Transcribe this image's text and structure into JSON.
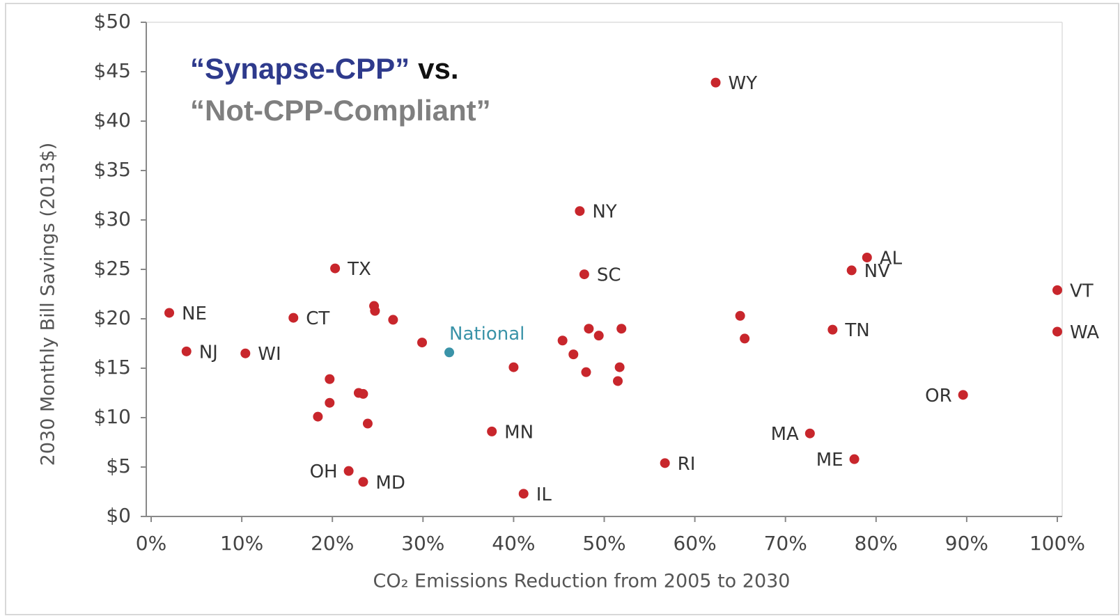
{
  "chart_data": {
    "type": "scatter",
    "annotations": [
      "“Synapse-CPP”",
      "vs.",
      "“Not-CPP-Compliant”"
    ],
    "xlabel": "CO₂ Emissions Reduction from 2005 to 2030",
    "ylabel": "2030 Monthly Bill Savings (2013$)",
    "xlim": [
      0,
      100
    ],
    "xticks": [
      {
        "value": 0,
        "label": "0%"
      },
      {
        "value": 10,
        "label": "10%"
      },
      {
        "value": 20,
        "label": "20%"
      },
      {
        "value": 30,
        "label": "30%"
      },
      {
        "value": 40,
        "label": "40%"
      },
      {
        "value": 50,
        "label": "50%"
      },
      {
        "value": 60,
        "label": "60%"
      },
      {
        "value": 70,
        "label": "70%"
      },
      {
        "value": 80,
        "label": "80%"
      },
      {
        "value": 90,
        "label": "90%"
      },
      {
        "value": 100,
        "label": "100%"
      }
    ],
    "ylim": [
      0,
      50
    ],
    "yticks": [
      {
        "value": 0,
        "label": "$0"
      },
      {
        "value": 5,
        "label": "$5"
      },
      {
        "value": 10,
        "label": "$10"
      },
      {
        "value": 15,
        "label": "$15"
      },
      {
        "value": 20,
        "label": "$20"
      },
      {
        "value": 25,
        "label": "$25"
      },
      {
        "value": 30,
        "label": "$30"
      },
      {
        "value": 35,
        "label": "$35"
      },
      {
        "value": 40,
        "label": "$40"
      },
      {
        "value": 45,
        "label": "$45"
      },
      {
        "value": 50,
        "label": "$50"
      }
    ],
    "series": [
      {
        "color": "#c8262c",
        "x": [
          2.0,
          3.9,
          10.4,
          15.7,
          20.3,
          19.7,
          19.7,
          18.4,
          22.9,
          23.4,
          23.9,
          24.6,
          24.7,
          26.7,
          29.9,
          21.8,
          23.4,
          40.0,
          37.6,
          41.1,
          47.3,
          47.8,
          45.4,
          46.6,
          48.0,
          48.3,
          49.4,
          51.9,
          51.7,
          51.5,
          56.7,
          62.3,
          65.0,
          65.5,
          72.7,
          75.2,
          77.3,
          79.0,
          77.6,
          89.6,
          100,
          100
        ],
        "values": [
          20.6,
          16.7,
          16.5,
          20.1,
          25.1,
          13.9,
          11.5,
          10.1,
          12.5,
          12.4,
          9.4,
          21.3,
          20.8,
          19.9,
          17.6,
          4.6,
          3.5,
          15.1,
          8.6,
          2.3,
          30.9,
          24.5,
          17.8,
          16.4,
          14.6,
          19.0,
          18.3,
          19.0,
          15.1,
          13.7,
          5.4,
          43.9,
          20.3,
          18.0,
          8.4,
          18.9,
          24.9,
          26.2,
          5.8,
          12.3,
          22.9,
          18.7
        ],
        "labels": [
          "NE",
          "NJ",
          "WI",
          "CT",
          "TX",
          null,
          null,
          null,
          null,
          null,
          null,
          null,
          null,
          null,
          null,
          "OH",
          "MD",
          null,
          "MN",
          "IL",
          "NY",
          "SC",
          null,
          null,
          null,
          null,
          null,
          null,
          null,
          null,
          "RI",
          "WY",
          null,
          null,
          "MA",
          "TN",
          "NV",
          "AL",
          "ME",
          "OR",
          "VT",
          "WA"
        ]
      },
      {
        "color": "#3a93a8",
        "x": [
          32.9
        ],
        "values": [
          16.6
        ],
        "labels": [
          "National"
        ]
      }
    ]
  }
}
